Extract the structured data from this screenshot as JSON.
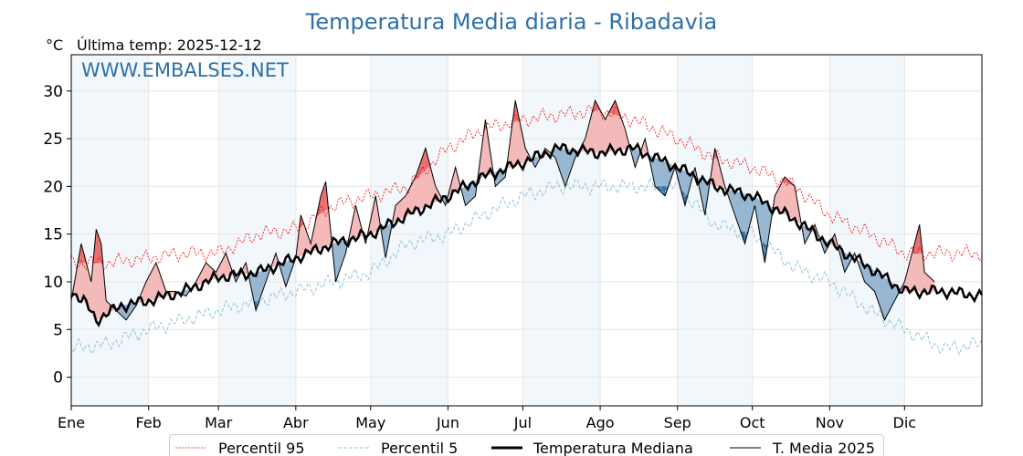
{
  "chart_data": {
    "type": "line",
    "title": "Temperatura Media diaria - Ribadavia",
    "ylabel": "°C",
    "subtitle": "Última temp: 2025-12-12",
    "watermark": "WWW.EMBALSES.NET",
    "ylim": [
      -3,
      33.8
    ],
    "xlim": [
      0,
      365
    ],
    "yticks": [
      0,
      5,
      10,
      15,
      20,
      25,
      30
    ],
    "month_labels": [
      "Ene",
      "Feb",
      "Mar",
      "Abr",
      "May",
      "Jun",
      "Jul",
      "Ago",
      "Sep",
      "Oct",
      "Nov",
      "Dic"
    ],
    "month_start_days": [
      0,
      31,
      59,
      90,
      120,
      151,
      181,
      212,
      243,
      273,
      304,
      334
    ],
    "legend": [
      "Percentil 95",
      "Percentil 5",
      "Temperatura Mediana",
      "T. Media 2025"
    ],
    "legend_position": "bottom-center",
    "grid": true,
    "colors": {
      "title": "#2e6fa7",
      "p95": "#ff0000",
      "p5": "#8fc4d8",
      "median": "#000000",
      "t2025": "#000000",
      "above": "#f4b9b9",
      "above_extreme": "#e96a6a",
      "below": "#96b6d1",
      "below_extreme": "#2f6ea5",
      "band": "#f2f7fc"
    },
    "series": [
      {
        "name": "Percentil 95",
        "x": [
          0,
          15,
          31,
          45,
          59,
          75,
          90,
          105,
          120,
          135,
          151,
          165,
          181,
          195,
          212,
          225,
          243,
          258,
          273,
          290,
          304,
          320,
          334,
          350,
          365
        ],
        "values": [
          12,
          12,
          12.5,
          13,
          13,
          15,
          15.5,
          18,
          19,
          20,
          24,
          26,
          27,
          27.5,
          28,
          27,
          25,
          23,
          22,
          20,
          17,
          15,
          13,
          13,
          13
        ]
      },
      {
        "name": "Percentil 5",
        "x": [
          0,
          15,
          31,
          45,
          59,
          75,
          90,
          105,
          120,
          135,
          151,
          165,
          181,
          195,
          212,
          225,
          243,
          258,
          273,
          290,
          304,
          320,
          334,
          350,
          365
        ],
        "values": [
          3,
          3.5,
          5,
          6,
          7,
          8,
          9,
          10,
          11,
          14,
          15,
          17,
          19,
          20,
          20,
          20,
          20,
          16,
          15,
          11.5,
          10,
          7,
          5,
          3,
          3.5
        ]
      },
      {
        "name": "Temperatura Mediana",
        "x": [
          0,
          5,
          10,
          20,
          31,
          45,
          59,
          75,
          90,
          105,
          120,
          135,
          151,
          165,
          181,
          195,
          212,
          225,
          243,
          258,
          273,
          290,
          304,
          320,
          334,
          350,
          365
        ],
        "values": [
          9,
          8,
          6,
          7.5,
          8,
          9,
          10.5,
          11,
          12.5,
          14,
          15,
          17,
          19,
          21,
          22.5,
          24,
          23.5,
          24,
          22,
          20,
          19,
          16.5,
          14,
          11.5,
          9,
          9,
          8.5
        ]
      },
      {
        "name": "T. Media 2025",
        "x": [
          0,
          4,
          8,
          10,
          12,
          14,
          18,
          22,
          26,
          30,
          34,
          38,
          42,
          46,
          50,
          54,
          58,
          62,
          66,
          70,
          74,
          78,
          82,
          86,
          90,
          92,
          96,
          100,
          102,
          106,
          110,
          114,
          118,
          122,
          126,
          130,
          134,
          138,
          142,
          146,
          150,
          154,
          158,
          162,
          166,
          170,
          174,
          178,
          182,
          186,
          190,
          194,
          198,
          202,
          206,
          210,
          214,
          218,
          222,
          226,
          230,
          234,
          238,
          242,
          246,
          250,
          254,
          258,
          262,
          266,
          270,
          274,
          278,
          282,
          286,
          290,
          294,
          298,
          302,
          306,
          310,
          314,
          318,
          322,
          326,
          330,
          334,
          338,
          340,
          342,
          346
        ],
        "values": [
          8,
          14,
          10,
          15.5,
          14,
          8,
          7,
          6,
          7.5,
          10,
          12,
          9,
          9,
          8.5,
          10,
          12,
          11,
          13,
          10,
          12,
          7,
          10,
          13,
          9.5,
          12.5,
          17,
          14,
          19,
          20.5,
          10,
          13,
          18,
          14,
          19,
          12.5,
          18,
          19,
          21,
          24,
          20,
          18,
          22,
          18,
          19,
          27,
          20,
          21,
          29,
          24,
          22,
          24,
          23,
          20,
          23,
          25,
          29,
          27,
          29,
          26,
          22,
          25,
          20,
          19,
          22,
          18,
          22,
          17,
          24,
          20,
          17,
          14,
          18,
          12,
          19,
          21,
          20,
          14,
          16,
          13,
          15,
          11,
          13,
          10,
          9,
          6,
          8,
          10,
          14,
          16,
          11,
          10
        ]
      }
    ]
  }
}
